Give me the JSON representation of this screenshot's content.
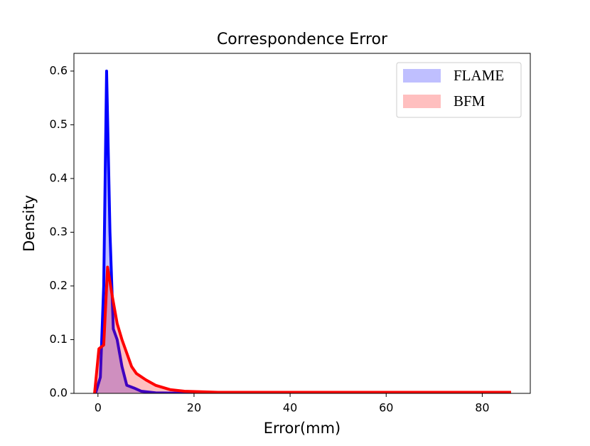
{
  "chart_data": {
    "type": "area",
    "title": "Correspondence Error",
    "x_label": "Error(mm)",
    "y_label": "Density",
    "xlim": [
      -5,
      90
    ],
    "ylim": [
      0,
      0.633
    ],
    "xticks": [
      0,
      20,
      40,
      60,
      80
    ],
    "yticks": [
      {
        "value": 0,
        "label": "0.0"
      },
      0.1,
      0.2,
      0.3,
      0.4,
      0.5,
      0.6
    ],
    "grid": false,
    "legend": "upper right",
    "series": [
      {
        "name": "FLAME",
        "color": "#0000ff",
        "x": [
          -0.5,
          0.5,
          1.2,
          1.8,
          2.5,
          3.2,
          4,
          5,
          6,
          7.5,
          9,
          12,
          20,
          86
        ],
        "values": [
          0,
          0.03,
          0.2,
          0.6,
          0.3,
          0.12,
          0.1,
          0.05,
          0.015,
          0.01,
          0.004,
          0.001,
          0,
          0
        ]
      },
      {
        "name": "BFM",
        "color": "#ff0000",
        "x": [
          -0.7,
          0.2,
          1.2,
          2,
          3,
          4,
          5,
          7,
          8,
          10,
          12,
          15,
          18,
          25,
          40,
          60,
          86
        ],
        "values": [
          0,
          0.083,
          0.09,
          0.235,
          0.18,
          0.13,
          0.1,
          0.05,
          0.037,
          0.025,
          0.015,
          0.007,
          0.004,
          0.002,
          0.002,
          0.002,
          0.002
        ]
      }
    ]
  }
}
